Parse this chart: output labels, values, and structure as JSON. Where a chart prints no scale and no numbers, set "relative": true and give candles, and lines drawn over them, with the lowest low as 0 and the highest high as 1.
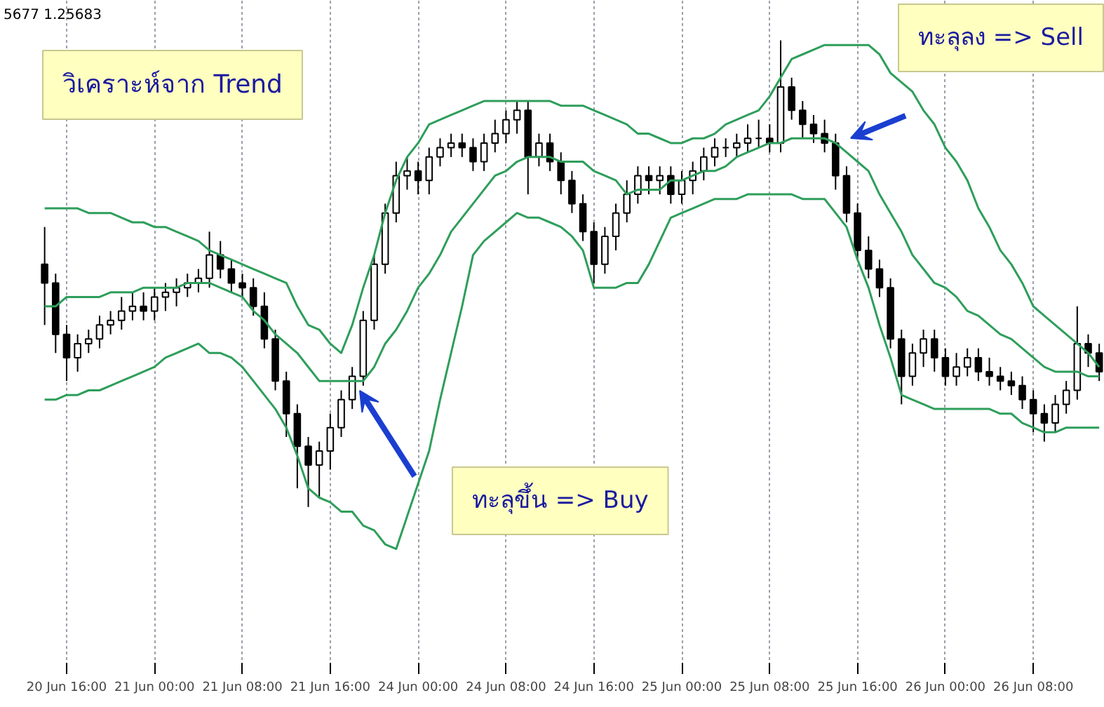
{
  "chart_data": {
    "type": "candlestick",
    "relative": true,
    "grid": "x",
    "categories": [
      null,
      null,
      "20 Jun 16:00",
      null,
      null,
      null,
      null,
      null,
      null,
      null,
      "21 Jun 00:00",
      null,
      null,
      null,
      null,
      null,
      null,
      null,
      "21 Jun 08:00",
      null,
      null,
      null,
      null,
      null,
      null,
      null,
      "21 Jun 16:00",
      null,
      null,
      null,
      null,
      null,
      null,
      null,
      "24 Jun 00:00",
      null,
      null,
      null,
      null,
      null,
      null,
      null,
      "24 Jun 08:00",
      null,
      null,
      null,
      null,
      null,
      null,
      null,
      "24 Jun 16:00",
      null,
      null,
      null,
      null,
      null,
      null,
      null,
      "25 Jun 00:00",
      null,
      null,
      null,
      null,
      null,
      null,
      null,
      "25 Jun 08:00",
      null,
      null,
      null,
      null,
      null,
      null,
      null,
      "25 Jun 16:00",
      null,
      null,
      null,
      null,
      null,
      null,
      null,
      "26 Jun 00:00",
      null,
      null,
      null,
      null,
      null,
      null,
      null,
      "26 Jun 08:00",
      null,
      null,
      null,
      null,
      null,
      null
    ],
    "color": "#000000",
    "ohlc": [
      [
        0.52,
        0.6,
        0.39,
        0.48
      ],
      [
        0.48,
        0.5,
        0.33,
        0.37
      ],
      [
        0.37,
        0.39,
        0.27,
        0.32
      ],
      [
        0.32,
        0.37,
        0.29,
        0.35
      ],
      [
        0.35,
        0.38,
        0.33,
        0.36
      ],
      [
        0.36,
        0.41,
        0.34,
        0.39
      ],
      [
        0.39,
        0.42,
        0.37,
        0.4
      ],
      [
        0.4,
        0.45,
        0.38,
        0.42
      ],
      [
        0.42,
        0.46,
        0.4,
        0.43
      ],
      [
        0.43,
        0.46,
        0.4,
        0.42
      ],
      [
        0.42,
        0.47,
        0.4,
        0.45
      ],
      [
        0.45,
        0.48,
        0.42,
        0.46
      ],
      [
        0.46,
        0.49,
        0.43,
        0.47
      ],
      [
        0.47,
        0.5,
        0.45,
        0.48
      ],
      [
        0.48,
        0.51,
        0.46,
        0.49
      ],
      [
        0.49,
        0.59,
        0.47,
        0.54
      ],
      [
        0.54,
        0.57,
        0.49,
        0.51
      ],
      [
        0.51,
        0.53,
        0.46,
        0.48
      ],
      [
        0.48,
        0.5,
        0.45,
        0.47
      ],
      [
        0.47,
        0.49,
        0.41,
        0.43
      ],
      [
        0.43,
        0.46,
        0.34,
        0.36
      ],
      [
        0.36,
        0.38,
        0.25,
        0.27
      ],
      [
        0.27,
        0.29,
        0.15,
        0.2
      ],
      [
        0.2,
        0.22,
        0.04,
        0.13
      ],
      [
        0.13,
        0.15,
        0,
        0.09
      ],
      [
        0.09,
        0.14,
        0.02,
        0.12
      ],
      [
        0.12,
        0.2,
        0.08,
        0.17
      ],
      [
        0.17,
        0.25,
        0.15,
        0.23
      ],
      [
        0.23,
        0.3,
        0.21,
        0.28
      ],
      [
        0.28,
        0.42,
        0.26,
        0.4
      ],
      [
        0.4,
        0.54,
        0.38,
        0.52
      ],
      [
        0.52,
        0.65,
        0.5,
        0.63
      ],
      [
        0.63,
        0.74,
        0.61,
        0.71
      ],
      [
        0.71,
        0.75,
        0.68,
        0.72
      ],
      [
        0.72,
        0.74,
        0.67,
        0.7
      ],
      [
        0.7,
        0.77,
        0.67,
        0.75
      ],
      [
        0.75,
        0.79,
        0.73,
        0.77
      ],
      [
        0.77,
        0.8,
        0.75,
        0.78
      ],
      [
        0.78,
        0.8,
        0.75,
        0.77
      ],
      [
        0.77,
        0.79,
        0.72,
        0.74
      ],
      [
        0.74,
        0.8,
        0.72,
        0.78
      ],
      [
        0.78,
        0.83,
        0.76,
        0.8
      ],
      [
        0.8,
        0.85,
        0.78,
        0.83
      ],
      [
        0.83,
        0.87,
        0.8,
        0.85
      ],
      [
        0.85,
        0.87,
        0.67,
        0.75
      ],
      [
        0.75,
        0.8,
        0.73,
        0.78
      ],
      [
        0.78,
        0.8,
        0.72,
        0.74
      ],
      [
        0.74,
        0.76,
        0.67,
        0.7
      ],
      [
        0.7,
        0.72,
        0.63,
        0.65
      ],
      [
        0.65,
        0.67,
        0.57,
        0.59
      ],
      [
        0.59,
        0.61,
        0.48,
        0.52
      ],
      [
        0.52,
        0.6,
        0.5,
        0.58
      ],
      [
        0.58,
        0.65,
        0.55,
        0.63
      ],
      [
        0.63,
        0.7,
        0.61,
        0.67
      ],
      [
        0.67,
        0.73,
        0.65,
        0.71
      ],
      [
        0.71,
        0.73,
        0.67,
        0.7
      ],
      [
        0.7,
        0.73,
        0.67,
        0.71
      ],
      [
        0.71,
        0.73,
        0.65,
        0.67
      ],
      [
        0.67,
        0.72,
        0.65,
        0.7
      ],
      [
        0.7,
        0.74,
        0.67,
        0.72
      ],
      [
        0.72,
        0.77,
        0.7,
        0.75
      ],
      [
        0.75,
        0.79,
        0.73,
        0.77
      ],
      [
        0.77,
        0.79,
        0.75,
        0.77
      ],
      [
        0.77,
        0.8,
        0.75,
        0.78
      ],
      [
        0.78,
        0.82,
        0.76,
        0.79
      ],
      [
        0.79,
        0.83,
        0.77,
        0.79
      ],
      [
        0.79,
        0.82,
        0.76,
        0.78
      ],
      [
        0.78,
        1,
        0.76,
        0.9
      ],
      [
        0.9,
        0.92,
        0.83,
        0.85
      ],
      [
        0.85,
        0.87,
        0.79,
        0.82
      ],
      [
        0.82,
        0.84,
        0.78,
        0.8
      ],
      [
        0.8,
        0.83,
        0.76,
        0.78
      ],
      [
        0.78,
        0.8,
        0.68,
        0.71
      ],
      [
        0.71,
        0.73,
        0.61,
        0.63
      ],
      [
        0.63,
        0.65,
        0.53,
        0.55
      ],
      [
        0.55,
        0.58,
        0.49,
        0.51
      ],
      [
        0.51,
        0.53,
        0.45,
        0.47
      ],
      [
        0.47,
        0.49,
        0.34,
        0.36
      ],
      [
        0.36,
        0.38,
        0.22,
        0.28
      ],
      [
        0.28,
        0.35,
        0.26,
        0.33
      ],
      [
        0.33,
        0.38,
        0.3,
        0.36
      ],
      [
        0.36,
        0.38,
        0.29,
        0.32
      ],
      [
        0.32,
        0.34,
        0.26,
        0.28
      ],
      [
        0.28,
        0.33,
        0.26,
        0.3
      ],
      [
        0.3,
        0.34,
        0.28,
        0.32
      ],
      [
        0.32,
        0.34,
        0.27,
        0.29
      ],
      [
        0.29,
        0.32,
        0.26,
        0.28
      ],
      [
        0.28,
        0.3,
        0.25,
        0.27
      ],
      [
        0.27,
        0.29,
        0.24,
        0.26
      ],
      [
        0.26,
        0.28,
        0.21,
        0.23
      ],
      [
        0.23,
        0.25,
        0.16,
        0.2
      ],
      [
        0.2,
        0.22,
        0.14,
        0.18
      ],
      [
        0.18,
        0.24,
        0.16,
        0.22
      ],
      [
        0.22,
        0.27,
        0.2,
        0.25
      ],
      [
        0.25,
        0.43,
        0.23,
        0.35
      ],
      [
        0.35,
        0.37,
        0.3,
        0.33
      ],
      [
        0.33,
        0.35,
        0.27,
        0.29
      ]
    ],
    "series": [
      {
        "type": "line",
        "color": "#2e9e5b",
        "values": [
          0.64,
          0.64,
          0.64,
          0.64,
          0.63,
          0.63,
          0.63,
          0.62,
          0.61,
          0.61,
          0.6,
          0.6,
          0.59,
          0.58,
          0.57,
          0.55,
          0.54,
          0.53,
          0.52,
          0.51,
          0.5,
          0.49,
          0.48,
          0.43,
          0.39,
          0.38,
          0.35,
          0.33,
          0.39,
          0.47,
          0.54,
          0.63,
          0.7,
          0.75,
          0.78,
          0.82,
          0.83,
          0.84,
          0.85,
          0.86,
          0.87,
          0.87,
          0.87,
          0.87,
          0.87,
          0.87,
          0.87,
          0.86,
          0.86,
          0.86,
          0.85,
          0.84,
          0.83,
          0.82,
          0.8,
          0.8,
          0.79,
          0.78,
          0.78,
          0.79,
          0.79,
          0.8,
          0.82,
          0.83,
          0.84,
          0.85,
          0.88,
          0.92,
          0.96,
          0.97,
          0.98,
          0.99,
          0.99,
          0.99,
          0.99,
          0.99,
          0.97,
          0.93,
          0.91,
          0.89,
          0.85,
          0.82,
          0.77,
          0.74,
          0.7,
          0.64,
          0.6,
          0.55,
          0.52,
          0.48,
          0.43,
          0.41,
          0.39,
          0.37,
          0.35,
          0.33,
          0.3
        ]
      },
      {
        "type": "line",
        "color": "#2e9e5b",
        "values": [
          0.43,
          0.43,
          0.45,
          0.45,
          0.45,
          0.45,
          0.46,
          0.46,
          0.46,
          0.47,
          0.47,
          0.47,
          0.47,
          0.48,
          0.48,
          0.48,
          0.47,
          0.46,
          0.45,
          0.42,
          0.4,
          0.37,
          0.35,
          0.33,
          0.3,
          0.27,
          0.27,
          0.27,
          0.27,
          0.27,
          0.3,
          0.35,
          0.38,
          0.42,
          0.47,
          0.5,
          0.54,
          0.59,
          0.62,
          0.65,
          0.68,
          0.71,
          0.72,
          0.74,
          0.75,
          0.75,
          0.75,
          0.74,
          0.74,
          0.74,
          0.72,
          0.71,
          0.7,
          0.67,
          0.68,
          0.68,
          0.68,
          0.7,
          0.7,
          0.71,
          0.72,
          0.72,
          0.73,
          0.75,
          0.76,
          0.77,
          0.78,
          0.78,
          0.79,
          0.79,
          0.79,
          0.79,
          0.78,
          0.76,
          0.74,
          0.72,
          0.67,
          0.63,
          0.59,
          0.54,
          0.51,
          0.48,
          0.47,
          0.45,
          0.42,
          0.41,
          0.39,
          0.37,
          0.36,
          0.34,
          0.32,
          0.3,
          0.29,
          0.29,
          0.29,
          0.28,
          0.28
        ]
      },
      {
        "type": "line",
        "color": "#2e9e5b",
        "values": [
          0.23,
          0.23,
          0.24,
          0.24,
          0.25,
          0.25,
          0.26,
          0.27,
          0.28,
          0.29,
          0.3,
          0.32,
          0.33,
          0.34,
          0.35,
          0.33,
          0.33,
          0.32,
          0.3,
          0.27,
          0.24,
          0.21,
          0.17,
          0.11,
          0.04,
          0.02,
          0.01,
          -0.01,
          -0.01,
          -0.04,
          -0.05,
          -0.08,
          -0.09,
          -0.02,
          0.05,
          0.12,
          0.23,
          0.33,
          0.43,
          0.54,
          0.57,
          0.59,
          0.61,
          0.63,
          0.62,
          0.62,
          0.61,
          0.6,
          0.58,
          0.55,
          0.47,
          0.47,
          0.47,
          0.48,
          0.48,
          0.52,
          0.57,
          0.62,
          0.63,
          0.64,
          0.65,
          0.66,
          0.66,
          0.66,
          0.67,
          0.67,
          0.67,
          0.67,
          0.67,
          0.66,
          0.66,
          0.66,
          0.63,
          0.6,
          0.53,
          0.47,
          0.39,
          0.32,
          0.24,
          0.23,
          0.22,
          0.21,
          0.21,
          0.21,
          0.21,
          0.21,
          0.21,
          0.2,
          0.2,
          0.18,
          0.17,
          0.16,
          0.16,
          0.17,
          0.17,
          0.17,
          0.17
        ]
      }
    ],
    "annotations": [
      "5677 1.25683",
      "วิเคราะห์จาก Trend",
      "ทะลุลง => Sell",
      "ทะลุขึ้น => Buy"
    ]
  }
}
